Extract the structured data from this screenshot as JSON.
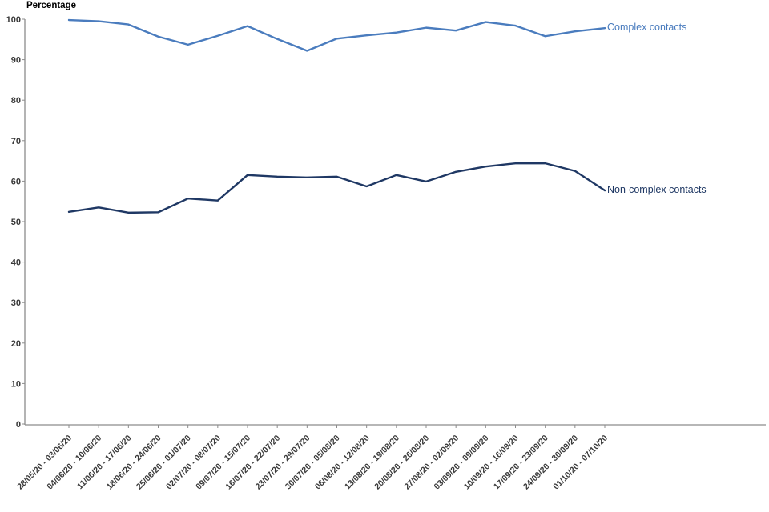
{
  "chart_data": {
    "type": "line",
    "title": "Percentage",
    "xlabel": "",
    "ylabel": "Percentage",
    "ylim": [
      0,
      100
    ],
    "ytick_interval": 10,
    "grid": false,
    "legend_position": "labels-at-line-ends",
    "categories": [
      "28/05/20 - 03/06/20",
      "04/06/20 - 10/06/20",
      "11/06/20 - 17/06/20",
      "18/06/20 - 24/06/20",
      "25/06/20 - 01/07/20",
      "02/07/20 - 08/07/20",
      "09/07/20 - 15/07/20",
      "16/07/20 - 22/07/20",
      "23/07/20 - 29/07/20",
      "30/07/20 - 05/08/20",
      "06/08/20 - 12/08/20",
      "13/08/20 - 19/08/20",
      "20/08/20 - 26/08/20",
      "27/08/20 - 02/09/20",
      "03/09/20 - 09/09/20",
      "10/09/20 - 16/09/20",
      "17/09/20 - 23/09/20",
      "24/09/20 - 30/09/20",
      "01/10/20 - 07/10/20"
    ],
    "series": [
      {
        "name": "Complex contacts",
        "color": "#4a7cbe",
        "values": [
          99.8,
          99.5,
          98.7,
          95.7,
          93.7,
          95.9,
          98.3,
          95.1,
          92.2,
          95.2,
          96.0,
          96.7,
          97.9,
          97.2,
          99.3,
          98.4,
          95.8,
          97.0,
          97.8
        ]
      },
      {
        "name": "Non-complex contacts",
        "color": "#1f3864",
        "values": [
          52.4,
          53.5,
          52.2,
          52.3,
          55.7,
          55.2,
          61.5,
          61.1,
          60.9,
          61.1,
          58.7,
          61.5,
          59.9,
          62.3,
          63.6,
          64.4,
          64.4,
          62.5,
          57.7
        ]
      }
    ],
    "axis_color": "#8c8c8c",
    "tick_color": "#8c8c8c"
  }
}
